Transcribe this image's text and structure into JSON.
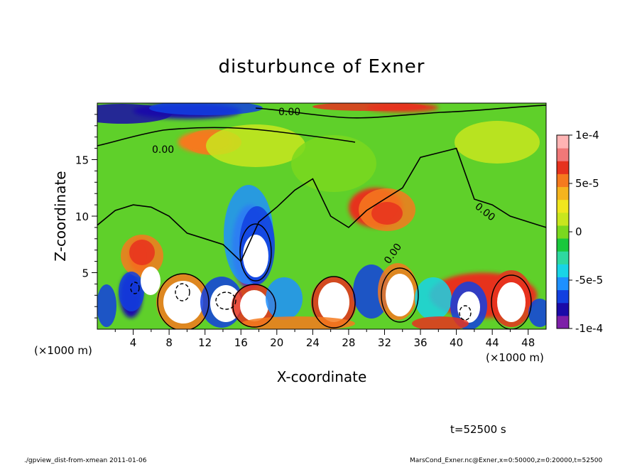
{
  "chart_data": {
    "type": "heatmap",
    "title": "disturbunce of Exner",
    "xlabel": "X-coordinate",
    "ylabel": "Z-coordinate",
    "x_unit": "(×1000 m)",
    "z_unit": "(×1000 m)",
    "xlim": [
      0,
      50
    ],
    "ylim": [
      0,
      20
    ],
    "x_ticks": [
      "4",
      "8",
      "12",
      "16",
      "20",
      "24",
      "28",
      "32",
      "36",
      "40",
      "44",
      "48"
    ],
    "y_ticks": [
      "5",
      "10",
      "15"
    ],
    "contour_label": "0.00",
    "colorbar": {
      "range": [
        -0.0001,
        0.0001
      ],
      "tick_labels": [
        "1e-4",
        "5e-5",
        "0",
        "-5e-5",
        "-1e-4"
      ],
      "tick_values": [
        0.0001,
        5e-05,
        0,
        -5e-05,
        -0.0001
      ],
      "colors": [
        "#7d1fa8",
        "#1a0aa8",
        "#1240e0",
        "#1e90ff",
        "#19d4e6",
        "#2ed8a0",
        "#19c83c",
        "#7ad81e",
        "#c8e61e",
        "#f0e61e",
        "#f5b41e",
        "#f57a1e",
        "#e6321e",
        "#f07878",
        "#ffb4b4"
      ]
    },
    "regions": [
      {
        "name": "top-upper-negative",
        "x": [
          4,
          16
        ],
        "z": [
          18.6,
          20.0
        ],
        "value": -8e-05
      },
      {
        "name": "top-upper-positive",
        "x": [
          30,
          38
        ],
        "z": [
          19.2,
          20.0
        ],
        "value": 7e-05
      },
      {
        "name": "upper-left-positive",
        "x": [
          9,
          15
        ],
        "z": [
          15.6,
          17.5
        ],
        "value": 5e-05
      },
      {
        "name": "mid-positive",
        "x": [
          28,
          34
        ],
        "z": [
          9.0,
          12.5
        ],
        "value": 6e-05
      },
      {
        "name": "vortex-negative",
        "x": [
          15,
          19
        ],
        "z": [
          3.5,
          11
        ],
        "value": -9e-05
      },
      {
        "name": "left-negative-column",
        "x": [
          2.5,
          5
        ],
        "z": [
          1,
          5
        ],
        "value": -8e-05
      },
      {
        "name": "lower-positive-left",
        "x": [
          3.5,
          6
        ],
        "z": [
          5,
          8
        ],
        "value": 6e-05
      },
      {
        "name": "lower-positive-right",
        "x": [
          37,
          49
        ],
        "z": [
          1,
          5
        ],
        "value": 7e-05
      }
    ],
    "contour_zero_z_by_x": [
      [
        0,
        9.2
      ],
      [
        2,
        10.5
      ],
      [
        4,
        11.0
      ],
      [
        6,
        10.8
      ],
      [
        8,
        10.0
      ],
      [
        10,
        8.5
      ],
      [
        12,
        8.0
      ],
      [
        14,
        7.5
      ],
      [
        16,
        6.0
      ],
      [
        18,
        9.5
      ],
      [
        20,
        10.8
      ],
      [
        22,
        12.3
      ],
      [
        24,
        13.3
      ],
      [
        26,
        10.0
      ],
      [
        28,
        9.0
      ],
      [
        30,
        10.5
      ],
      [
        32,
        11.5
      ],
      [
        34,
        12.5
      ],
      [
        36,
        15.2
      ],
      [
        38,
        15.6
      ],
      [
        40,
        16.0
      ],
      [
        42,
        11.5
      ],
      [
        44,
        11.0
      ],
      [
        46,
        10.0
      ],
      [
        48,
        9.5
      ],
      [
        50,
        9.0
      ]
    ]
  },
  "footer": {
    "time_label": "t=52500 s",
    "script_label": "./gpview_dist-from-xmean  2011-01-06",
    "source_label": "MarsCond_Exner.nc@Exner,x=0:50000,z=0:20000,t=52500"
  }
}
